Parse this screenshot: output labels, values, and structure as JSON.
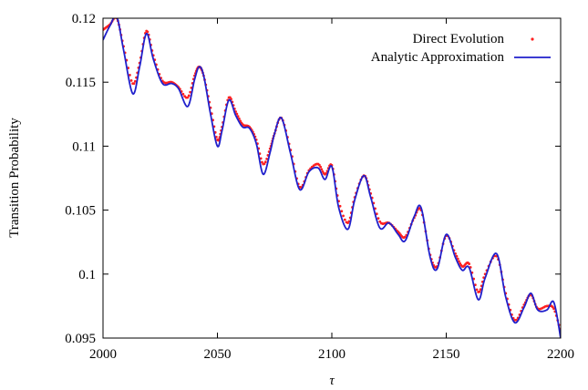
{
  "chart_data": {
    "type": "line",
    "title": "",
    "xlabel": "τ",
    "ylabel": "Transition Probability",
    "xlim": [
      2000,
      2200
    ],
    "ylim": [
      0.095,
      0.12
    ],
    "x_ticks": [
      2000,
      2050,
      2100,
      2150,
      2200
    ],
    "x_tick_labels": [
      "2000",
      "2050",
      "2100",
      "2150",
      "2200"
    ],
    "y_ticks": [
      0.095,
      0.1,
      0.105,
      0.11,
      0.115,
      0.12
    ],
    "y_tick_labels": [
      "0.095",
      "0.1",
      "0.105",
      "0.11",
      "0.115",
      "0.12"
    ],
    "legend_position": "top-right",
    "grid": false,
    "series": [
      {
        "name": "Direct Evolution",
        "style": "points",
        "color": "#ff2020",
        "x": [
          2000,
          2003,
          2006,
          2009,
          2013,
          2016,
          2019,
          2022,
          2026,
          2030,
          2033,
          2037,
          2040,
          2042,
          2044,
          2047,
          2050,
          2052,
          2055,
          2058,
          2061,
          2064,
          2067,
          2070,
          2073,
          2075,
          2078,
          2082,
          2086,
          2090,
          2094,
          2097,
          2100,
          2103,
          2107,
          2110,
          2114,
          2117,
          2121,
          2125,
          2129,
          2132,
          2136,
          2139,
          2143,
          2146,
          2150,
          2154,
          2157,
          2160,
          2164,
          2167,
          2172,
          2176,
          2180,
          2184,
          2187,
          2190,
          2194,
          2197,
          2200
        ],
        "y": [
          0.1191,
          0.1195,
          0.12,
          0.1178,
          0.1149,
          0.1165,
          0.119,
          0.1171,
          0.1151,
          0.115,
          0.1146,
          0.1138,
          0.1155,
          0.1162,
          0.1155,
          0.113,
          0.1105,
          0.1115,
          0.1138,
          0.1127,
          0.1117,
          0.1115,
          0.1105,
          0.1086,
          0.1098,
          0.111,
          0.1122,
          0.1097,
          0.1068,
          0.1081,
          0.1086,
          0.1078,
          0.1085,
          0.1057,
          0.104,
          0.106,
          0.1077,
          0.1063,
          0.1041,
          0.104,
          0.1033,
          0.1029,
          0.1044,
          0.105,
          0.1015,
          0.1006,
          0.103,
          0.1016,
          0.1006,
          0.1008,
          0.0986,
          0.1,
          0.1014,
          0.0985,
          0.0964,
          0.0976,
          0.0984,
          0.0973,
          0.0975,
          0.0973,
          0.0955
        ]
      },
      {
        "name": "Analytic Approximation",
        "style": "line",
        "color": "#2020cc",
        "x": [
          2000,
          2003,
          2006,
          2009,
          2013,
          2016,
          2019,
          2022,
          2026,
          2030,
          2033,
          2037,
          2040,
          2042,
          2044,
          2047,
          2050,
          2052,
          2055,
          2058,
          2061,
          2064,
          2067,
          2070,
          2073,
          2075,
          2078,
          2082,
          2086,
          2090,
          2094,
          2097,
          2100,
          2103,
          2107,
          2110,
          2114,
          2117,
          2121,
          2125,
          2129,
          2132,
          2136,
          2139,
          2143,
          2146,
          2150,
          2154,
          2157,
          2160,
          2164,
          2167,
          2172,
          2176,
          2180,
          2184,
          2187,
          2190,
          2194,
          2197,
          2200
        ],
        "y": [
          0.1183,
          0.1194,
          0.1201,
          0.1175,
          0.1141,
          0.1162,
          0.1188,
          0.1168,
          0.1149,
          0.1149,
          0.1145,
          0.1131,
          0.1152,
          0.1162,
          0.1155,
          0.1125,
          0.11,
          0.1112,
          0.1136,
          0.1124,
          0.1115,
          0.1114,
          0.1102,
          0.1078,
          0.1095,
          0.111,
          0.1122,
          0.1094,
          0.1066,
          0.108,
          0.1083,
          0.1074,
          0.1084,
          0.1052,
          0.1035,
          0.1058,
          0.1077,
          0.106,
          0.1036,
          0.104,
          0.1031,
          0.1026,
          0.1045,
          0.1052,
          0.1013,
          0.1004,
          0.1031,
          0.1013,
          0.1003,
          0.1005,
          0.098,
          0.0997,
          0.1016,
          0.0982,
          0.0962,
          0.0974,
          0.0985,
          0.0972,
          0.0972,
          0.0978,
          0.095
        ]
      }
    ]
  }
}
